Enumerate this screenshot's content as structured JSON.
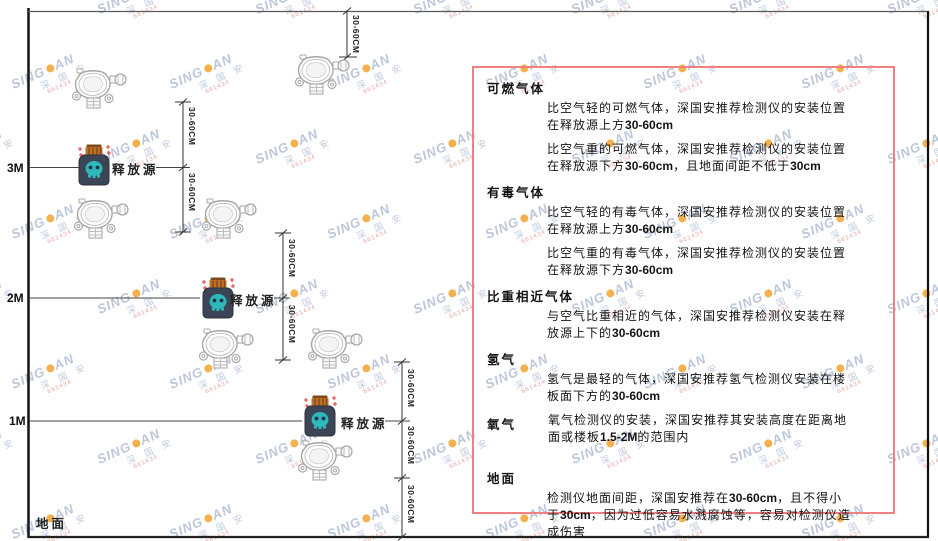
{
  "diagram": {
    "axis": {
      "m3": "3M",
      "m2": "2M",
      "m1": "1M",
      "ground": "地面"
    },
    "release_label": "释放源",
    "dim_label": "30-60CM",
    "icons": {
      "gas_detector": "gas-detector-icon",
      "release_source": "release-source-icon"
    },
    "colors": {
      "wall": "#1a1a1a",
      "dimension_line": "#444444",
      "bottle_body": "#3c4556",
      "bottle_cap": "#c06f25",
      "bottle_creature": "#2fb8ba",
      "spark": "#e04040"
    }
  },
  "panel": {
    "border_color": "#f08082",
    "sections": [
      {
        "heading": "可燃气体",
        "inline": false,
        "gap_top": false,
        "paras": [
          [
            {
              "t": "比空气轻的可燃气体，深国安推荐检测仪的安装位置在释放源上方"
            },
            {
              "t": "30-60cm",
              "b": true
            }
          ],
          [
            {
              "t": "比空气重的可燃气体，深国安推荐检测仪的安装位置在释放源下方"
            },
            {
              "t": "30-60cm",
              "b": true
            },
            {
              "t": "，且地面间距不低于"
            },
            {
              "t": "30cm",
              "b": true
            }
          ]
        ]
      },
      {
        "heading": "有毒气体",
        "inline": false,
        "gap_top": false,
        "paras": [
          [
            {
              "t": "比空气轻的有毒气体，深国安推荐检测仪的安装位置在释放源上方"
            },
            {
              "t": "30-60cm",
              "b": true
            }
          ],
          [
            {
              "t": "比空气重的有毒气体，深国安推荐检测仪的安装位置在释放源下方"
            },
            {
              "t": "30-60cm",
              "b": true
            }
          ]
        ]
      },
      {
        "heading": "比重相近气体",
        "inline": false,
        "gap_top": false,
        "paras": [
          [
            {
              "t": "与空气比重相近的气体，深国安推荐检测仪安装在释放源上下的"
            },
            {
              "t": "30-60cm",
              "b": true
            }
          ]
        ]
      },
      {
        "heading": "氢气",
        "inline": false,
        "gap_top": false,
        "paras": [
          [
            {
              "t": "氢气是最轻的气体，深国安推荐氢气检测仪安装在楼板面下方的"
            },
            {
              "t": "30-60cm",
              "b": true
            }
          ]
        ]
      },
      {
        "heading": "氧气",
        "inline": true,
        "gap_top": false,
        "paras": [
          [
            {
              "t": "氧气检测仪的安装，深国安推荐其安装高度在距离地面或楼板"
            },
            {
              "t": "1.5-2M",
              "b": true
            },
            {
              "t": "的范围内"
            }
          ]
        ]
      },
      {
        "heading": "地面",
        "inline": false,
        "gap_top": true,
        "paras": [
          [
            {
              "t": "检测仪地面间距，深国安推荐在"
            },
            {
              "t": "30-60cm",
              "b": true
            },
            {
              "t": "，且不得小于"
            },
            {
              "t": "30cm",
              "b": true
            },
            {
              "t": "，因为过低容易水溅腐蚀等，容易对检测仪造成伤害"
            }
          ]
        ]
      }
    ]
  },
  "watermark": {
    "brand_left": "SING",
    "brand_right": "AN",
    "cjk": "深 国 安",
    "sub": "661434"
  }
}
